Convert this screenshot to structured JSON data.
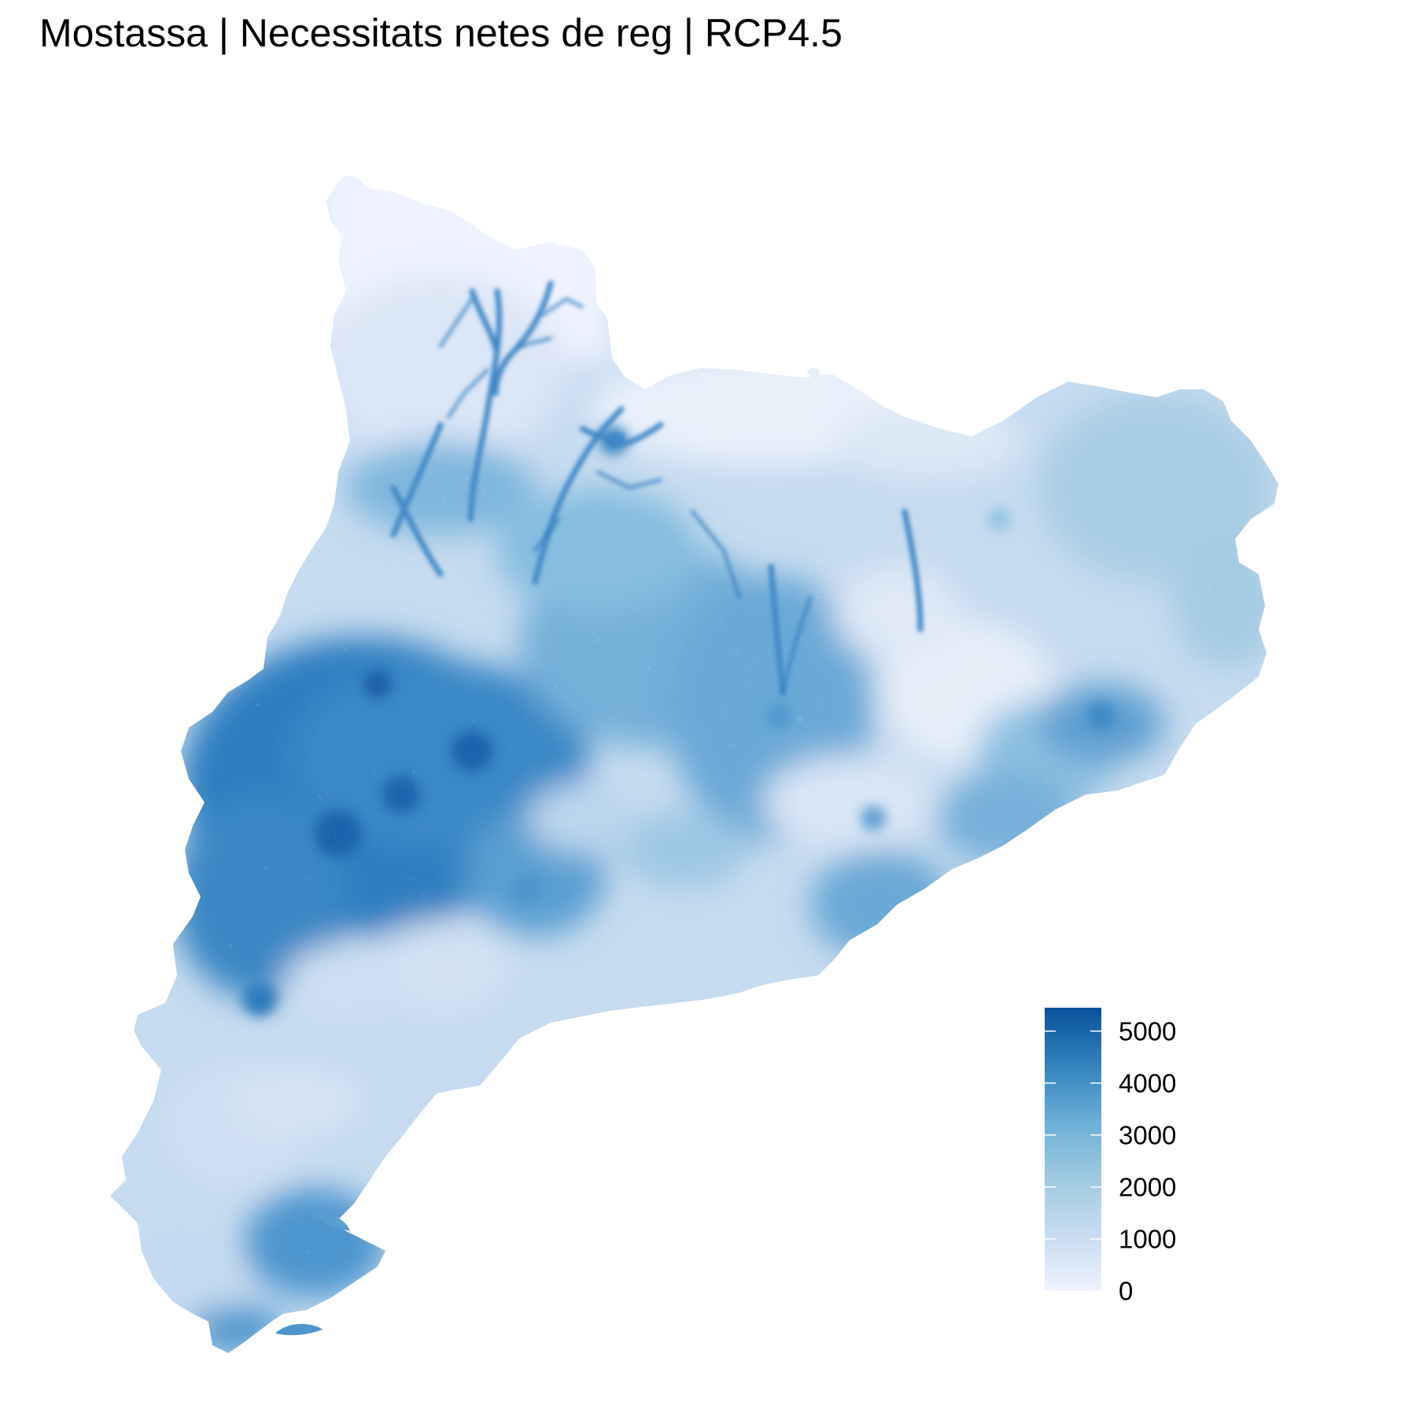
{
  "title": "Mostassa | Necessitats netes de reg | RCP4.5",
  "legend": {
    "ticks": [
      {
        "label": "5000",
        "value": 5000
      },
      {
        "label": "4000",
        "value": 4000
      },
      {
        "label": "3000",
        "value": 3000
      },
      {
        "label": "2000",
        "value": 2000
      },
      {
        "label": "1000",
        "value": 1000
      },
      {
        "label": "0",
        "value": 0
      }
    ],
    "min": 0,
    "max": 5450,
    "color_low": "#eff3ff",
    "color_high": "#08519c"
  }
}
